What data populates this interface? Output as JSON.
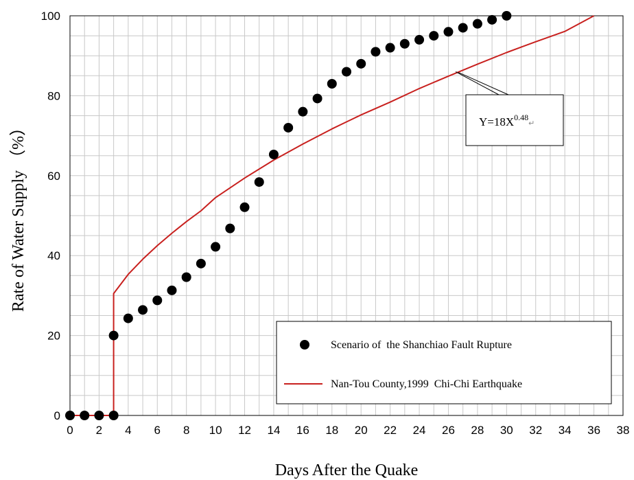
{
  "chart_data": {
    "type": "scatter",
    "xlabel": "Days After the Quake",
    "ylabel": "Rate of Water Supply （%）",
    "xlim": [
      0,
      38
    ],
    "ylim": [
      0,
      100
    ],
    "x_ticks": [
      "0",
      "2",
      "4",
      "6",
      "8",
      "10",
      "12",
      "14",
      "16",
      "18",
      "20",
      "22",
      "24",
      "26",
      "28",
      "30",
      "32",
      "34",
      "36",
      "38"
    ],
    "y_ticks": [
      "0",
      "20",
      "40",
      "60",
      "80",
      "100"
    ],
    "grid": true,
    "legend_position": "bottom-right",
    "series": [
      {
        "name": "Scenario of  the Shanchiao Fault Rupture",
        "type": "scatter",
        "color": "#000000",
        "x": [
          0,
          1,
          2,
          3,
          3,
          4,
          5,
          6,
          7,
          8,
          9,
          10,
          11,
          12,
          13,
          14,
          15,
          16,
          17,
          18,
          19,
          20,
          21,
          22,
          23,
          24,
          25,
          26,
          27,
          28,
          29,
          30
        ],
        "y": [
          0,
          0,
          0,
          0,
          20,
          24.3,
          26.4,
          28.8,
          31.3,
          34.6,
          38,
          42.2,
          46.8,
          52.1,
          58.4,
          65.3,
          72,
          76,
          79.3,
          83,
          86,
          88,
          91,
          92,
          93,
          94,
          95,
          96,
          97,
          98,
          99,
          100
        ]
      },
      {
        "name": "Nan-Tou County,1999  Chi-Chi Earthquake",
        "type": "line",
        "color": "#c8201e",
        "x": [
          0,
          3,
          3,
          4,
          5,
          6,
          7,
          8,
          9,
          10,
          12,
          14,
          16,
          18,
          20,
          22,
          24,
          26,
          28,
          30,
          32,
          34,
          36
        ],
        "y": [
          0,
          0,
          30.5,
          35.3,
          39.1,
          42.5,
          45.6,
          48.5,
          51.2,
          54.5,
          59.4,
          63.9,
          67.9,
          71.7,
          75.2,
          78.4,
          81.8,
          84.9,
          87.9,
          90.8,
          93.5,
          96.1,
          100
        ]
      }
    ],
    "annotation": {
      "text_base": "Y=18X",
      "text_exponent": "0.48",
      "text_mark": "↵",
      "points_to": {
        "x": 26.5,
        "y": 86
      }
    }
  }
}
